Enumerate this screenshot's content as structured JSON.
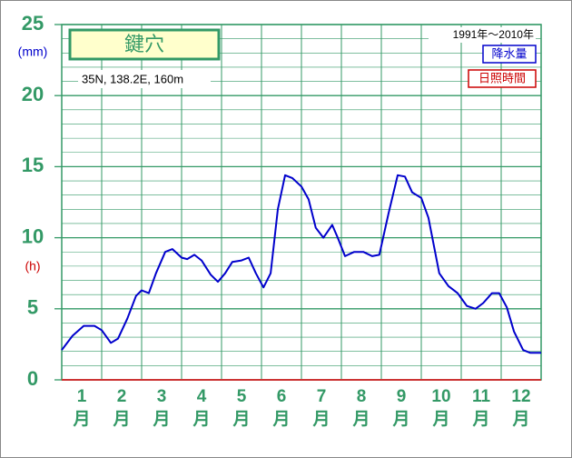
{
  "chart_data": {
    "type": "line",
    "title": "鍵穴",
    "location": "35N,  138.2E,  160m",
    "period": "1991年〜2010年",
    "y_unit": "(mm)",
    "y2_unit": "(h)",
    "legend": [
      {
        "name": "降水量",
        "color": "#0000cc"
      },
      {
        "name": "日照時間",
        "color": "#cc0000"
      }
    ],
    "categories": [
      "1月",
      "2月",
      "3月",
      "4月",
      "5月",
      "6月",
      "7月",
      "8月",
      "9月",
      "10月",
      "11月",
      "12月"
    ],
    "xlim": [
      0,
      12
    ],
    "ylim": [
      0,
      25
    ],
    "yticks": [
      0,
      5,
      10,
      15,
      20,
      25
    ],
    "minor_yticks": [
      1,
      2,
      3,
      4,
      6,
      7,
      8,
      9,
      11,
      12,
      13,
      14,
      16,
      17,
      18,
      19,
      21,
      22,
      23,
      24
    ],
    "grid": true,
    "series": [
      {
        "color": "#0000cc",
        "x": [
          0,
          0.27,
          0.55,
          0.82,
          1.0,
          1.23,
          1.41,
          1.64,
          1.86,
          2.0,
          2.18,
          2.36,
          2.59,
          2.77,
          3.0,
          3.14,
          3.32,
          3.5,
          3.73,
          3.91,
          4.09,
          4.27,
          4.5,
          4.68,
          4.86,
          5.05,
          5.23,
          5.41,
          5.59,
          5.77,
          6.0,
          6.18,
          6.36,
          6.55,
          6.77,
          6.91,
          7.09,
          7.32,
          7.55,
          7.77,
          7.95,
          8.18,
          8.41,
          8.59,
          8.77,
          9.0,
          9.18,
          9.45,
          9.68,
          9.91,
          10.14,
          10.36,
          10.55,
          10.77,
          10.95,
          11.14,
          11.32,
          11.55,
          11.73,
          12.0
        ],
        "values": [
          2.1,
          3.1,
          3.8,
          3.8,
          3.5,
          2.6,
          2.9,
          4.3,
          5.9,
          6.3,
          6.1,
          7.5,
          9.0,
          9.2,
          8.6,
          8.5,
          8.8,
          8.4,
          7.4,
          6.9,
          7.5,
          8.3,
          8.4,
          8.6,
          7.5,
          6.5,
          7.5,
          12.0,
          14.4,
          14.2,
          13.6,
          12.7,
          10.7,
          10.0,
          10.9,
          10.0,
          8.7,
          9.0,
          9.0,
          8.7,
          8.8,
          11.7,
          14.4,
          14.3,
          13.2,
          12.8,
          11.4,
          7.5,
          6.6,
          6.1,
          5.2,
          5.0,
          5.4,
          6.1,
          6.1,
          5.1,
          3.4,
          2.1,
          1.9,
          1.9
        ]
      }
    ]
  }
}
